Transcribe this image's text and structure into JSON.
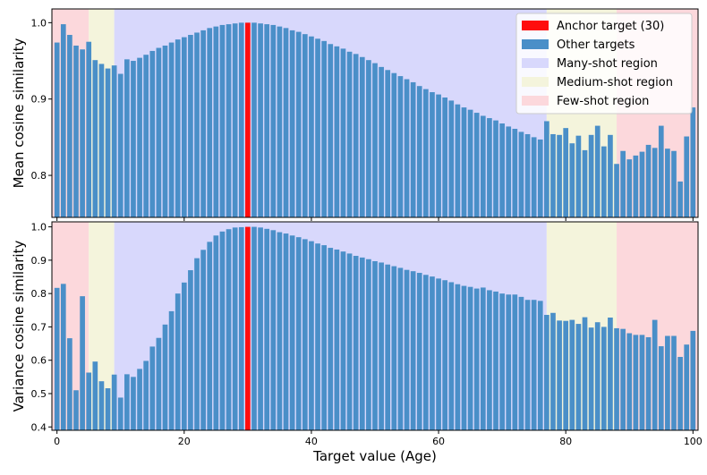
{
  "chart_data": {
    "type": "bar",
    "x": [
      0,
      1,
      2,
      3,
      4,
      5,
      6,
      7,
      8,
      9,
      10,
      11,
      12,
      13,
      14,
      15,
      16,
      17,
      18,
      19,
      20,
      21,
      22,
      23,
      24,
      25,
      26,
      27,
      28,
      29,
      30,
      31,
      32,
      33,
      34,
      35,
      36,
      37,
      38,
      39,
      40,
      41,
      42,
      43,
      44,
      45,
      46,
      47,
      48,
      49,
      50,
      51,
      52,
      53,
      54,
      55,
      56,
      57,
      58,
      59,
      60,
      61,
      62,
      63,
      64,
      65,
      66,
      67,
      68,
      69,
      70,
      71,
      72,
      73,
      74,
      75,
      76,
      77,
      78,
      79,
      80,
      81,
      82,
      83,
      84,
      85,
      86,
      87,
      88,
      89,
      90,
      91,
      92,
      93,
      94,
      95,
      96,
      97,
      98,
      99,
      100
    ],
    "anchor": 30,
    "xlabel": "Target value (Age)",
    "xlim": [
      -0.8,
      100.8
    ],
    "xticks": [
      0,
      20,
      40,
      60,
      80,
      100
    ],
    "colors": {
      "anchor": "#ff0d0d",
      "bars": "#4a8fc8",
      "many": "#d8d8fc",
      "medium": "#f4f4dc",
      "few": "#fcd8dc"
    },
    "regions": [
      {
        "type": "few",
        "start": -0.8,
        "end": 5
      },
      {
        "type": "medium",
        "start": 5,
        "end": 9
      },
      {
        "type": "many",
        "start": 9,
        "end": 77
      },
      {
        "type": "medium",
        "start": 77,
        "end": 88
      },
      {
        "type": "few",
        "start": 88,
        "end": 100.8
      }
    ],
    "legend": {
      "position": "top-right",
      "entries": [
        {
          "label": "Anchor target (30)",
          "color_key": "anchor"
        },
        {
          "label": "Other targets",
          "color_key": "bars"
        },
        {
          "label": "Many-shot region",
          "color_key": "many"
        },
        {
          "label": "Medium-shot region",
          "color_key": "medium"
        },
        {
          "label": "Few-shot region",
          "color_key": "few"
        }
      ]
    },
    "panels": [
      {
        "ylabel": "Mean cosine similarity",
        "ylim": [
          0.745,
          1.018
        ],
        "yticks": [
          0.8,
          0.9,
          1.0
        ],
        "ytick_labels": [
          "0.8",
          "0.9",
          "1.0"
        ],
        "values": [
          0.974,
          0.998,
          0.984,
          0.97,
          0.965,
          0.975,
          0.951,
          0.946,
          0.94,
          0.944,
          0.933,
          0.952,
          0.95,
          0.954,
          0.958,
          0.963,
          0.967,
          0.97,
          0.974,
          0.978,
          0.981,
          0.984,
          0.987,
          0.99,
          0.993,
          0.995,
          0.997,
          0.998,
          0.999,
          1.0,
          1.0,
          1.0,
          0.999,
          0.998,
          0.997,
          0.995,
          0.993,
          0.99,
          0.988,
          0.985,
          0.982,
          0.979,
          0.976,
          0.972,
          0.969,
          0.966,
          0.962,
          0.959,
          0.955,
          0.951,
          0.947,
          0.942,
          0.938,
          0.934,
          0.93,
          0.926,
          0.922,
          0.917,
          0.913,
          0.909,
          0.906,
          0.902,
          0.898,
          0.893,
          0.889,
          0.886,
          0.882,
          0.878,
          0.875,
          0.872,
          0.868,
          0.864,
          0.861,
          0.857,
          0.854,
          0.85,
          0.847,
          0.871,
          0.854,
          0.853,
          0.862,
          0.842,
          0.852,
          0.833,
          0.853,
          0.865,
          0.838,
          0.853,
          0.815,
          0.832,
          0.821,
          0.826,
          0.831,
          0.84,
          0.836,
          0.865,
          0.835,
          0.832,
          0.792,
          0.851,
          0.889
        ]
      },
      {
        "ylabel": "Variance cosine similarity",
        "ylim": [
          0.39,
          1.015
        ],
        "yticks": [
          0.4,
          0.5,
          0.6,
          0.7,
          0.8,
          0.9,
          1.0
        ],
        "ytick_labels": [
          "0.4",
          "0.5",
          "0.6",
          "0.7",
          "0.8",
          "0.9",
          "1.0"
        ],
        "values": [
          0.817,
          0.829,
          0.666,
          0.51,
          0.792,
          0.563,
          0.596,
          0.537,
          0.516,
          0.557,
          0.488,
          0.558,
          0.55,
          0.574,
          0.598,
          0.641,
          0.667,
          0.707,
          0.747,
          0.8,
          0.833,
          0.87,
          0.906,
          0.931,
          0.955,
          0.974,
          0.986,
          0.993,
          0.998,
          0.999,
          1.0,
          1.0,
          0.998,
          0.994,
          0.99,
          0.984,
          0.98,
          0.974,
          0.969,
          0.963,
          0.957,
          0.95,
          0.945,
          0.937,
          0.932,
          0.926,
          0.92,
          0.913,
          0.908,
          0.903,
          0.897,
          0.893,
          0.887,
          0.882,
          0.877,
          0.871,
          0.867,
          0.862,
          0.856,
          0.851,
          0.845,
          0.84,
          0.834,
          0.828,
          0.823,
          0.82,
          0.815,
          0.818,
          0.81,
          0.806,
          0.8,
          0.797,
          0.797,
          0.79,
          0.781,
          0.781,
          0.778,
          0.736,
          0.742,
          0.719,
          0.718,
          0.721,
          0.709,
          0.729,
          0.698,
          0.714,
          0.7,
          0.728,
          0.696,
          0.694,
          0.681,
          0.676,
          0.676,
          0.669,
          0.721,
          0.642,
          0.673,
          0.673,
          0.61,
          0.647,
          0.688
        ]
      }
    ]
  }
}
